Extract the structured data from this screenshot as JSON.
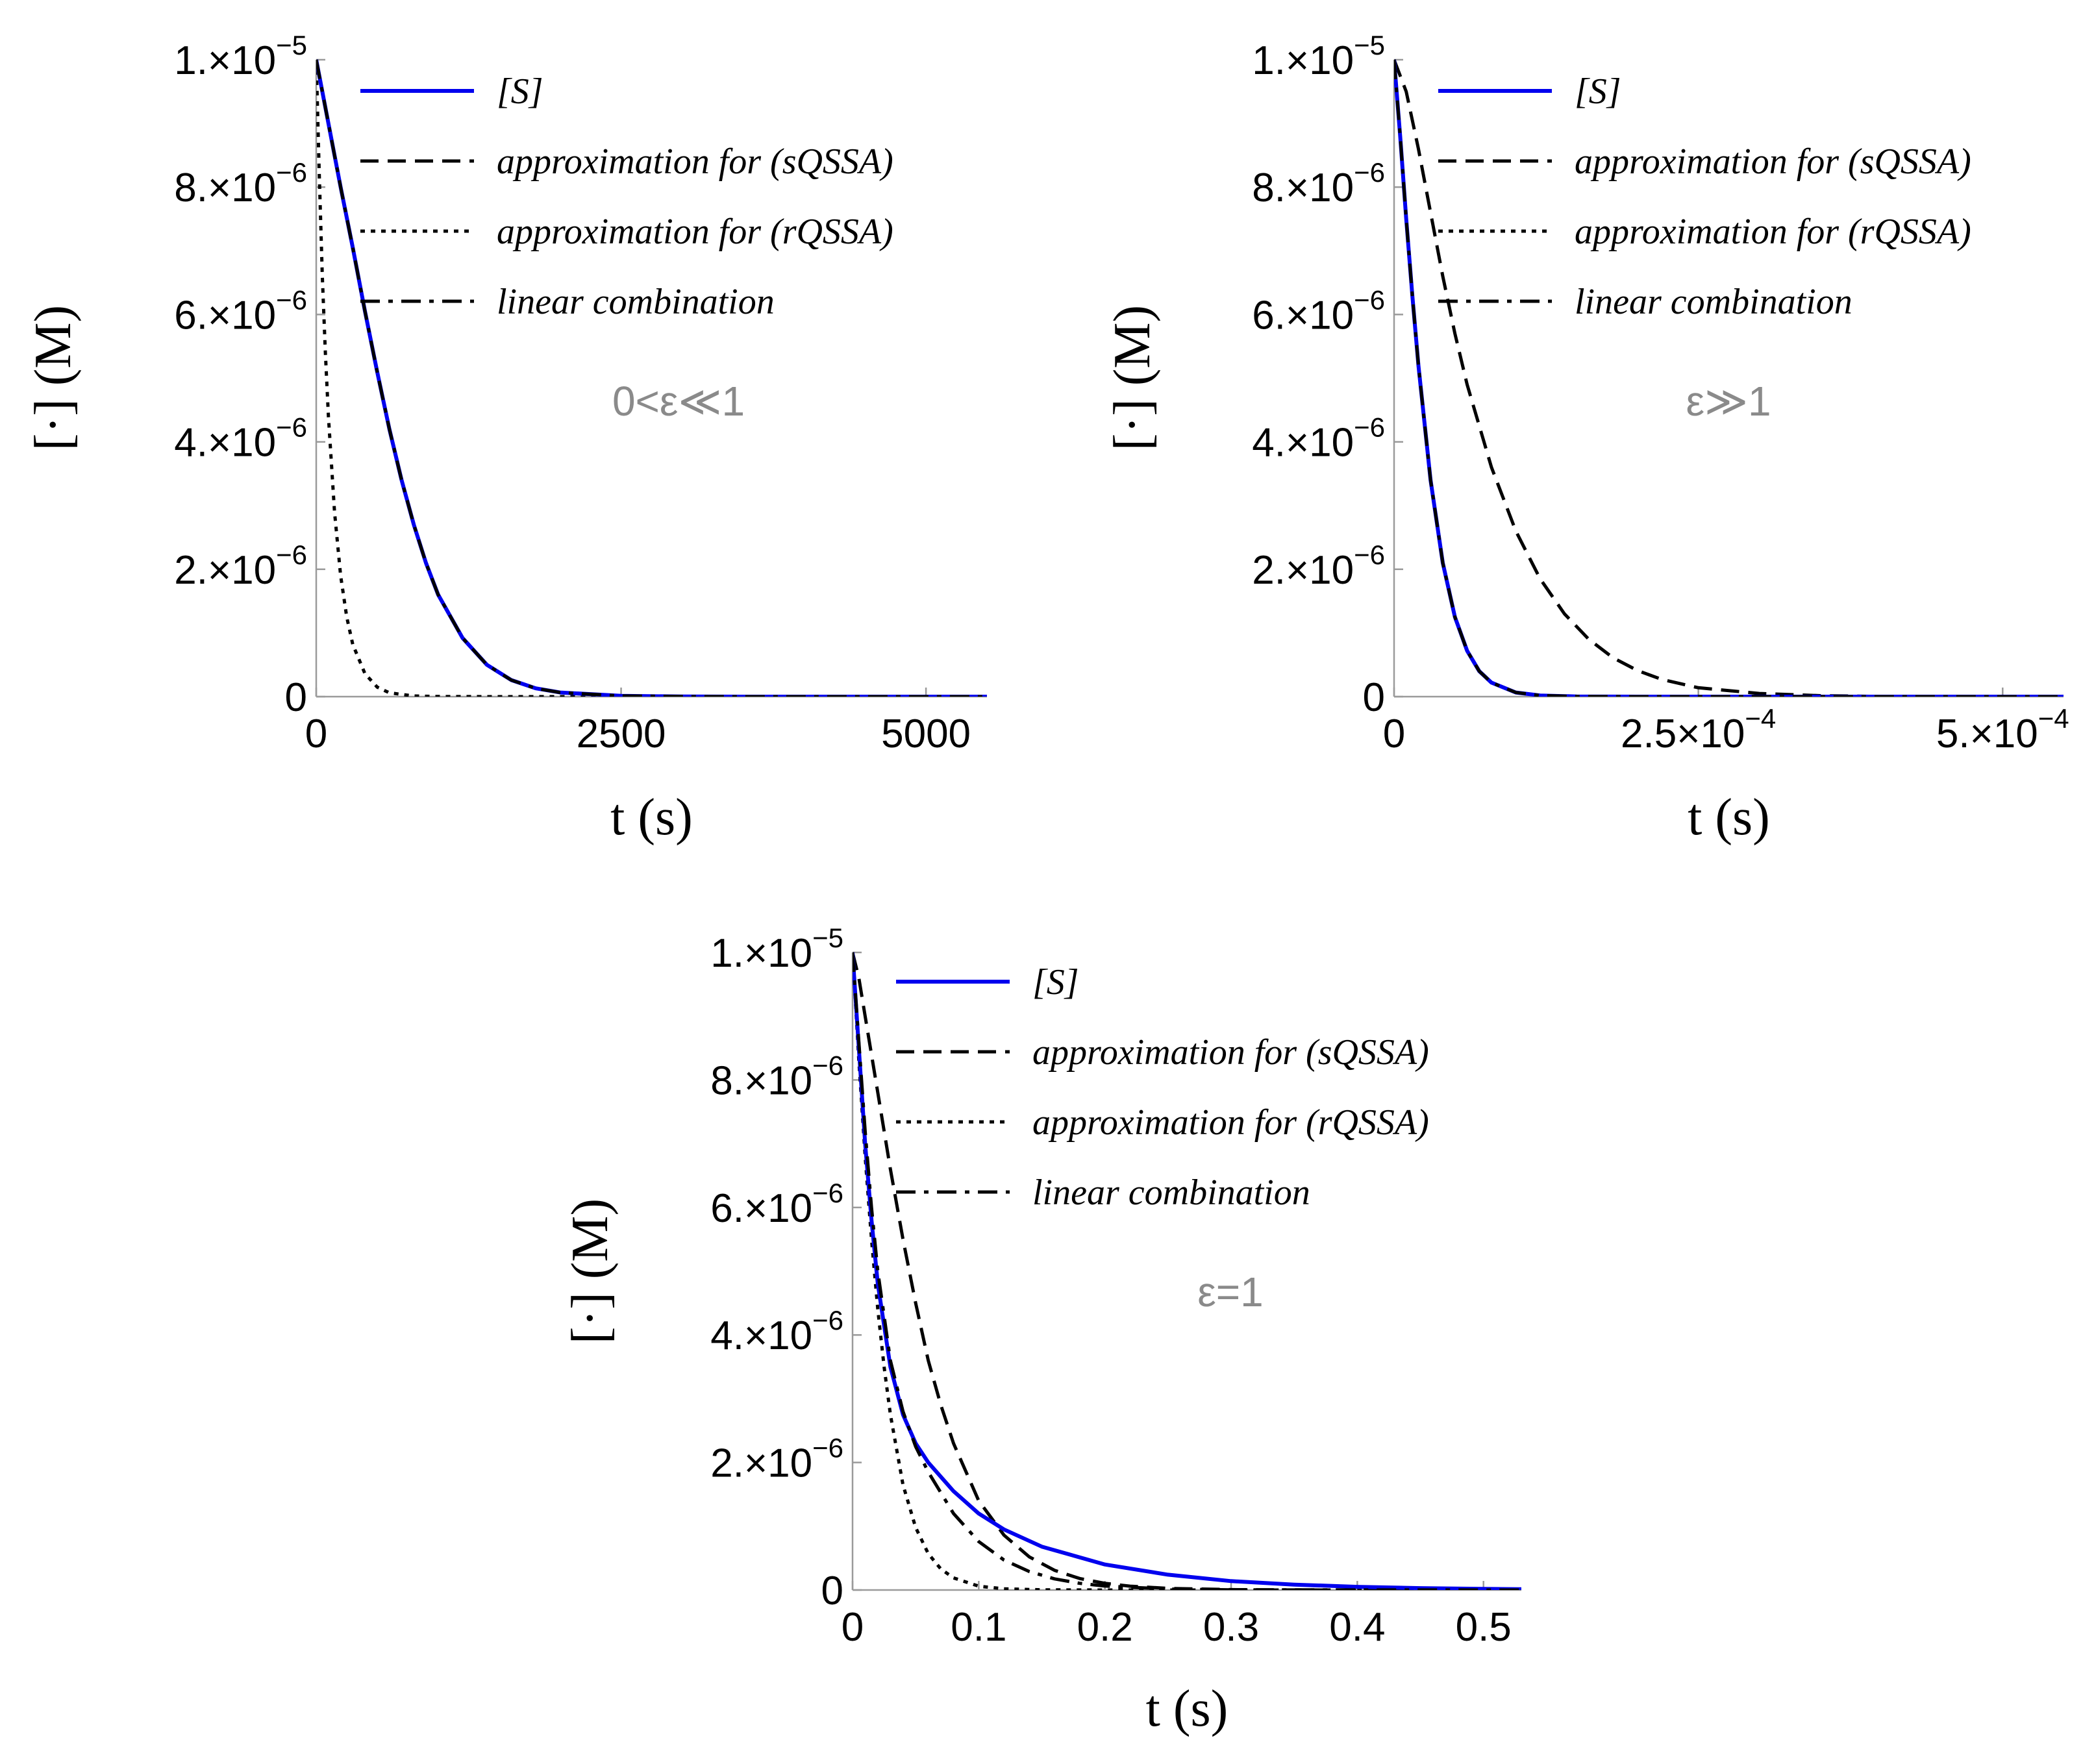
{
  "colors": {
    "substrate": "#0000ee",
    "approx": "#000000",
    "annotation": "#8a8a8a"
  },
  "chart_data": [
    {
      "type": "line",
      "annotation": "0<ε≪1",
      "xlabel": "t (s)",
      "ylabel": "[·] (M)",
      "xlim": [
        0,
        5500
      ],
      "ylim": [
        0,
        1e-05
      ],
      "xticks": [
        {
          "value": 0,
          "label": "0"
        },
        {
          "value": 2500,
          "label": "2500"
        },
        {
          "value": 5000,
          "label": "5000"
        }
      ],
      "yticks": [
        {
          "value": 0,
          "mant": "0",
          "exp": ""
        },
        {
          "value": 2e-06,
          "mant": "2.×10",
          "exp": "−6"
        },
        {
          "value": 4e-06,
          "mant": "4.×10",
          "exp": "−6"
        },
        {
          "value": 6e-06,
          "mant": "6.×10",
          "exp": "−6"
        },
        {
          "value": 8e-06,
          "mant": "8.×10",
          "exp": "−6"
        },
        {
          "value": 1e-05,
          "mant": "1.×10",
          "exp": "−5"
        }
      ],
      "series": [
        {
          "name": "[S]",
          "style": "solid",
          "x": [
            0,
            100,
            200,
            300,
            400,
            500,
            600,
            700,
            800,
            900,
            1000,
            1200,
            1400,
            1600,
            1800,
            2000,
            2500,
            3000,
            3500,
            4000,
            4500,
            5000,
            5500
          ],
          "y": [
            1e-05,
            9e-06,
            8e-06,
            7.05e-06,
            6.05e-06,
            5.1e-06,
            4.2e-06,
            3.4e-06,
            2.7e-06,
            2.1e-06,
            1.6e-06,
            9.2e-07,
            5e-07,
            2.6e-07,
            1.3e-07,
            6.5e-08,
            1.2e-08,
            2e-09,
            0,
            0,
            0,
            0,
            0
          ]
        },
        {
          "name": "approximation for (sQSSA)",
          "style": "dashed",
          "x": [
            0,
            100,
            200,
            300,
            400,
            500,
            600,
            700,
            800,
            900,
            1000,
            1200,
            1400,
            1600,
            1800,
            2000,
            2500,
            3000,
            3500,
            4000,
            4500,
            5000,
            5500
          ],
          "y": [
            1e-05,
            9e-06,
            8e-06,
            7.05e-06,
            6.05e-06,
            5.1e-06,
            4.2e-06,
            3.4e-06,
            2.7e-06,
            2.1e-06,
            1.6e-06,
            9.2e-07,
            5e-07,
            2.6e-07,
            1.3e-07,
            6.5e-08,
            1.2e-08,
            2e-09,
            0,
            0,
            0,
            0,
            0
          ]
        },
        {
          "name": "approximation for (rQSSA)",
          "style": "dotted",
          "x": [
            0,
            25,
            50,
            75,
            100,
            150,
            200,
            250,
            300,
            400,
            500,
            600,
            800,
            1000,
            1500,
            2000,
            3000,
            4000,
            5500
          ],
          "y": [
            1e-05,
            8.2e-06,
            6.6e-06,
            5.4e-06,
            4.4e-06,
            2.9e-06,
            1.9e-06,
            1.25e-06,
            8.2e-07,
            3.6e-07,
            1.5e-07,
            6e-08,
            1e-08,
            2e-09,
            0,
            0,
            0,
            0,
            0
          ]
        },
        {
          "name": "linear combination",
          "style": "dashdot",
          "x": [
            0,
            100,
            200,
            300,
            400,
            500,
            600,
            700,
            800,
            900,
            1000,
            1200,
            1400,
            1600,
            1800,
            2000,
            2500,
            3000,
            3500,
            4000,
            4500,
            5000,
            5500
          ],
          "y": [
            1e-05,
            9e-06,
            8e-06,
            7.05e-06,
            6.05e-06,
            5.1e-06,
            4.2e-06,
            3.4e-06,
            2.7e-06,
            2.1e-06,
            1.6e-06,
            9.2e-07,
            5e-07,
            2.6e-07,
            1.3e-07,
            6.5e-08,
            1.2e-08,
            2e-09,
            0,
            0,
            0,
            0,
            0
          ]
        }
      ]
    },
    {
      "type": "line",
      "annotation": "ε≫1",
      "xlabel": "t (s)",
      "ylabel": "[·] (M)",
      "xlim": [
        0,
        0.00055
      ],
      "ylim": [
        0,
        1e-05
      ],
      "xticks": [
        {
          "value": 0,
          "mant": "0",
          "exp": ""
        },
        {
          "value": 0.00025,
          "mant": "2.5×10",
          "exp": "−4"
        },
        {
          "value": 0.0005,
          "mant": "5.×10",
          "exp": "−4"
        }
      ],
      "yticks": [
        {
          "value": 0,
          "mant": "0",
          "exp": ""
        },
        {
          "value": 2e-06,
          "mant": "2.×10",
          "exp": "−6"
        },
        {
          "value": 4e-06,
          "mant": "4.×10",
          "exp": "−6"
        },
        {
          "value": 6e-06,
          "mant": "6.×10",
          "exp": "−6"
        },
        {
          "value": 8e-06,
          "mant": "8.×10",
          "exp": "−6"
        },
        {
          "value": 1e-05,
          "mant": "1.×10",
          "exp": "−5"
        }
      ],
      "series": [
        {
          "name": "[S]",
          "style": "solid",
          "x": [
            0,
            5e-06,
            1e-05,
            1.5e-05,
            2e-05,
            3e-05,
            4e-05,
            5e-05,
            6e-05,
            7e-05,
            8e-05,
            0.0001,
            0.00012,
            0.00015,
            0.0002,
            0.0003,
            0.0004,
            0.00055
          ],
          "y": [
            1e-05,
            8.8e-06,
            7.5e-06,
            6.3e-06,
            5.2e-06,
            3.4e-06,
            2.1e-06,
            1.25e-06,
            7.2e-07,
            4e-07,
            2.2e-07,
            6.5e-08,
            1.8e-08,
            3e-09,
            0,
            0,
            0,
            0
          ]
        },
        {
          "name": "approximation for (sQSSA)",
          "style": "dashed",
          "x": [
            0,
            1e-05,
            2e-05,
            3e-05,
            4e-05,
            5e-05,
            6e-05,
            8e-05,
            0.0001,
            0.00012,
            0.00014,
            0.00016,
            0.00018,
            0.0002,
            0.00022,
            0.00025,
            0.0003,
            0.00035,
            0.0004,
            0.00055
          ],
          "y": [
            1e-05,
            9.5e-06,
            8.6e-06,
            7.6e-06,
            6.6e-06,
            5.7e-06,
            4.9e-06,
            3.6e-06,
            2.6e-06,
            1.85e-06,
            1.3e-06,
            9e-07,
            6.1e-07,
            4.1e-07,
            2.7e-07,
            1.4e-07,
            5e-08,
            1.5e-08,
            3e-09,
            0
          ]
        },
        {
          "name": "approximation for (rQSSA)",
          "style": "dotted",
          "x": [
            0,
            5e-06,
            1e-05,
            1.5e-05,
            2e-05,
            3e-05,
            4e-05,
            5e-05,
            6e-05,
            7e-05,
            8e-05,
            0.0001,
            0.00012,
            0.00015,
            0.0002,
            0.0003,
            0.0004,
            0.00055
          ],
          "y": [
            1e-05,
            8.8e-06,
            7.5e-06,
            6.3e-06,
            5.2e-06,
            3.4e-06,
            2.1e-06,
            1.25e-06,
            7.2e-07,
            4e-07,
            2.2e-07,
            6.5e-08,
            1.8e-08,
            3e-09,
            0,
            0,
            0,
            0
          ]
        },
        {
          "name": "linear combination",
          "style": "dashdot",
          "x": [
            0,
            5e-06,
            1e-05,
            1.5e-05,
            2e-05,
            3e-05,
            4e-05,
            5e-05,
            6e-05,
            7e-05,
            8e-05,
            0.0001,
            0.00012,
            0.00015,
            0.0002,
            0.0003,
            0.0004,
            0.00055
          ],
          "y": [
            1e-05,
            8.8e-06,
            7.5e-06,
            6.3e-06,
            5.2e-06,
            3.4e-06,
            2.1e-06,
            1.25e-06,
            7.2e-07,
            4e-07,
            2.2e-07,
            6.5e-08,
            1.8e-08,
            3e-09,
            0,
            0,
            0,
            0
          ]
        }
      ]
    },
    {
      "type": "line",
      "annotation": "ε=1",
      "xlabel": "t (s)",
      "ylabel": "[·] (M)",
      "xlim": [
        0,
        0.53
      ],
      "ylim": [
        0,
        1e-05
      ],
      "xticks": [
        {
          "value": 0,
          "label": "0"
        },
        {
          "value": 0.1,
          "label": "0.1"
        },
        {
          "value": 0.2,
          "label": "0.2"
        },
        {
          "value": 0.3,
          "label": "0.3"
        },
        {
          "value": 0.4,
          "label": "0.4"
        },
        {
          "value": 0.5,
          "label": "0.5"
        }
      ],
      "yticks": [
        {
          "value": 0,
          "mant": "0",
          "exp": ""
        },
        {
          "value": 2e-06,
          "mant": "2.×10",
          "exp": "−6"
        },
        {
          "value": 4e-06,
          "mant": "4.×10",
          "exp": "−6"
        },
        {
          "value": 6e-06,
          "mant": "6.×10",
          "exp": "−6"
        },
        {
          "value": 8e-06,
          "mant": "8.×10",
          "exp": "−6"
        },
        {
          "value": 1e-05,
          "mant": "1.×10",
          "exp": "−5"
        }
      ],
      "series": [
        {
          "name": "[S]",
          "style": "solid",
          "x": [
            0,
            0.005,
            0.01,
            0.015,
            0.02,
            0.03,
            0.04,
            0.05,
            0.06,
            0.08,
            0.1,
            0.12,
            0.15,
            0.2,
            0.25,
            0.3,
            0.35,
            0.4,
            0.45,
            0.5,
            0.53
          ],
          "y": [
            1e-05,
            8.5e-06,
            7e-06,
            5.8e-06,
            4.8e-06,
            3.5e-06,
            2.75e-06,
            2.3e-06,
            2e-06,
            1.55e-06,
            1.2e-06,
            9.5e-07,
            6.8e-07,
            4e-07,
            2.4e-07,
            1.4e-07,
            8.5e-08,
            5e-08,
            3e-08,
            1.8e-08,
            1.3e-08
          ]
        },
        {
          "name": "approximation for (sQSSA)",
          "style": "dashed",
          "x": [
            0,
            0.005,
            0.01,
            0.02,
            0.03,
            0.04,
            0.05,
            0.06,
            0.07,
            0.08,
            0.1,
            0.12,
            0.14,
            0.16,
            0.18,
            0.2,
            0.22,
            0.25,
            0.3,
            0.35,
            0.4,
            0.53
          ],
          "y": [
            1e-05,
            9.6e-06,
            9e-06,
            7.8e-06,
            6.6e-06,
            5.5e-06,
            4.5e-06,
            3.6e-06,
            2.9e-06,
            2.3e-06,
            1.4e-06,
            8.6e-07,
            5.2e-07,
            3.1e-07,
            1.8e-07,
            1.05e-07,
            6e-08,
            2.5e-08,
            6e-09,
            1.5e-09,
            0,
            0
          ]
        },
        {
          "name": "approximation for (rQSSA)",
          "style": "dotted",
          "x": [
            0,
            0.005,
            0.01,
            0.015,
            0.02,
            0.025,
            0.03,
            0.04,
            0.05,
            0.06,
            0.07,
            0.08,
            0.1,
            0.12,
            0.15,
            0.2,
            0.53
          ],
          "y": [
            1e-05,
            8.3e-06,
            6.8e-06,
            5.5e-06,
            4.4e-06,
            3.5e-06,
            2.75e-06,
            1.65e-06,
            9.8e-07,
            5.7e-07,
            3.3e-07,
            1.9e-07,
            6e-08,
            1.8e-08,
            3e-09,
            0,
            0
          ]
        },
        {
          "name": "linear combination",
          "style": "dashdot",
          "x": [
            0,
            0.005,
            0.01,
            0.015,
            0.02,
            0.03,
            0.04,
            0.05,
            0.06,
            0.08,
            0.1,
            0.12,
            0.14,
            0.16,
            0.18,
            0.2,
            0.25,
            0.3,
            0.53
          ],
          "y": [
            1e-05,
            8.6e-06,
            7.2e-06,
            6e-06,
            5e-06,
            3.6e-06,
            2.8e-06,
            2.25e-06,
            1.85e-06,
            1.2e-06,
            7.6e-07,
            4.7e-07,
            2.9e-07,
            1.75e-07,
            1.05e-07,
            6.2e-08,
            1.5e-08,
            3e-09,
            0
          ]
        }
      ]
    }
  ]
}
